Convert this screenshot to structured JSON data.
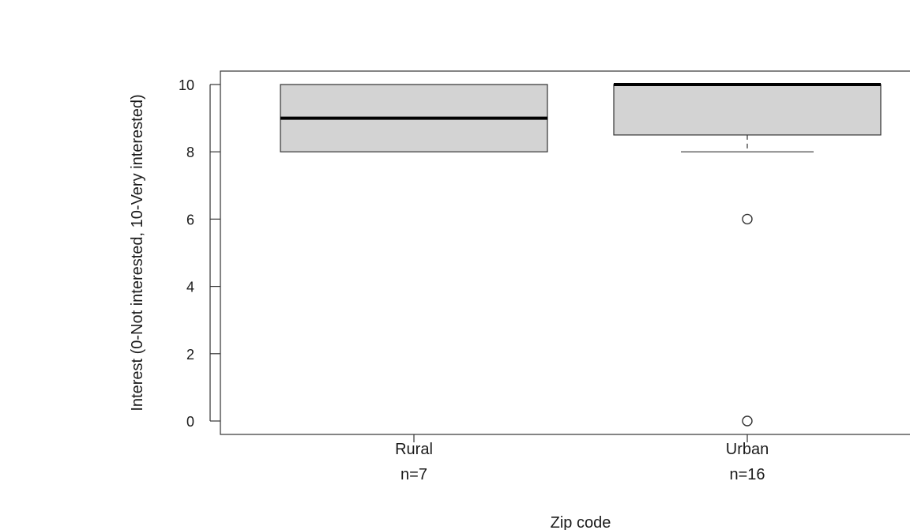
{
  "chart_data": {
    "type": "boxplot",
    "xlabel": "Zip code",
    "ylabel": "Interest (0-Not interested, 10-Very interested)",
    "ylim": [
      0,
      10
    ],
    "yticks": [
      0,
      2,
      4,
      6,
      8,
      10
    ],
    "grid": false,
    "box_fill": "#d3d3d3",
    "groups": [
      {
        "category": "Rural",
        "n_label": "n=7",
        "min": 8,
        "q1": 8,
        "median": 9,
        "q3": 10,
        "max": 10,
        "outliers": []
      },
      {
        "category": "Urban",
        "n_label": "n=16",
        "min": 8,
        "q1": 8.5,
        "median": 10,
        "q3": 10,
        "max": 10,
        "outliers": [
          6,
          0
        ]
      }
    ]
  }
}
